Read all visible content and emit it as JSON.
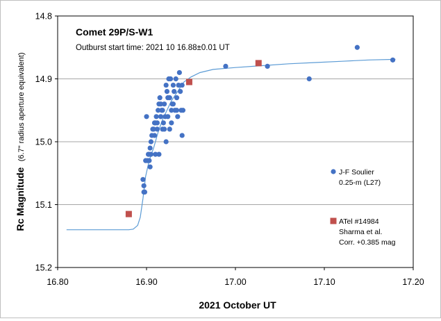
{
  "chart_data": {
    "type": "scatter",
    "title": "Comet 29P/S-W1",
    "subtitle": "Outburst start time: 2021 10 16.88±0.01  UT",
    "xlabel": "2021 October  UT",
    "ylabel_main": "Rc Magnitude",
    "ylabel_sub": "(6.7\" radius aperture equivalent)",
    "xlim": [
      16.8,
      17.2
    ],
    "ylim": [
      15.2,
      14.8
    ],
    "y_inverted": true,
    "grid": "horizontal",
    "x_ticks": [
      "16.80",
      "16.90",
      "17.00",
      "17.10",
      "17.20"
    ],
    "x_tick_values": [
      16.8,
      16.9,
      17.0,
      17.1,
      17.2
    ],
    "y_ticks": [
      "14.8",
      "14.9",
      "15.0",
      "15.1",
      "15.2"
    ],
    "y_tick_values": [
      14.8,
      14.9,
      15.0,
      15.1,
      15.2
    ],
    "legend_position": "right",
    "colors": {
      "soulier": "#4472c4",
      "atel": "#c0504d",
      "fit": "#5b9bd5",
      "grid": "#a6a6a6"
    },
    "series": [
      {
        "name": "J-F Soulier",
        "legend_lines": [
          "J-F Soulier",
          "0.25-m (L27)"
        ],
        "marker": "circle",
        "color": "#4472c4",
        "points": [
          [
            16.896,
            15.06
          ],
          [
            16.897,
            15.07
          ],
          [
            16.898,
            15.08
          ],
          [
            16.897,
            15.08
          ],
          [
            16.899,
            15.03
          ],
          [
            16.901,
            15.03
          ],
          [
            16.903,
            15.03
          ],
          [
            16.902,
            15.02
          ],
          [
            16.904,
            15.01
          ],
          [
            16.905,
            15.0
          ],
          [
            16.904,
            15.04
          ],
          [
            16.906,
            14.99
          ],
          [
            16.907,
            14.98
          ],
          [
            16.908,
            14.98
          ],
          [
            16.909,
            14.97
          ],
          [
            16.91,
            14.97
          ],
          [
            16.911,
            14.96
          ],
          [
            16.912,
            14.97
          ],
          [
            16.913,
            14.95
          ],
          [
            16.914,
            14.94
          ],
          [
            16.915,
            14.93
          ],
          [
            16.916,
            14.96
          ],
          [
            16.917,
            14.95
          ],
          [
            16.918,
            14.95
          ],
          [
            16.919,
            14.97
          ],
          [
            16.92,
            14.94
          ],
          [
            16.921,
            14.96
          ],
          [
            16.922,
            14.91
          ],
          [
            16.923,
            14.92
          ],
          [
            16.924,
            14.93
          ],
          [
            16.925,
            14.9
          ],
          [
            16.926,
            14.93
          ],
          [
            16.927,
            14.9
          ],
          [
            16.928,
            14.95
          ],
          [
            16.929,
            14.94
          ],
          [
            16.93,
            14.91
          ],
          [
            16.931,
            14.92
          ],
          [
            16.932,
            14.95
          ],
          [
            16.933,
            14.9
          ],
          [
            16.934,
            14.95
          ],
          [
            16.935,
            14.96
          ],
          [
            16.936,
            14.91
          ],
          [
            16.937,
            14.89
          ],
          [
            16.938,
            14.92
          ],
          [
            16.939,
            14.95
          ],
          [
            16.94,
            14.91
          ],
          [
            16.94,
            14.99
          ],
          [
            16.941,
            14.95
          ],
          [
            16.9,
            14.96
          ],
          [
            16.903,
            15.02
          ],
          [
            16.909,
            14.99
          ],
          [
            16.918,
            14.98
          ],
          [
            16.922,
            15.0
          ],
          [
            16.926,
            14.98
          ],
          [
            16.928,
            14.97
          ],
          [
            16.914,
            15.02
          ],
          [
            16.91,
            15.02
          ],
          [
            16.905,
            15.02
          ],
          [
            16.912,
            14.98
          ],
          [
            16.916,
            14.94
          ],
          [
            16.924,
            14.96
          ],
          [
            16.92,
            14.98
          ],
          [
            16.934,
            14.93
          ],
          [
            16.93,
            14.94
          ],
          [
            16.989,
            14.88
          ],
          [
            17.036,
            14.88
          ],
          [
            17.083,
            14.9
          ],
          [
            17.137,
            14.85
          ],
          [
            17.177,
            14.87
          ]
        ]
      },
      {
        "name": "ATel #14984",
        "legend_lines": [
          "ATel #14984",
          "Sharma et al.",
          "Corr. +0.385 mag"
        ],
        "marker": "square",
        "color": "#c0504d",
        "points": [
          [
            16.88,
            15.115
          ],
          [
            16.948,
            14.905
          ],
          [
            17.026,
            14.875
          ]
        ]
      }
    ],
    "fit_curve": {
      "color": "#5b9bd5",
      "points": [
        [
          16.81,
          15.14
        ],
        [
          16.88,
          15.14
        ],
        [
          16.885,
          15.139
        ],
        [
          16.89,
          15.133
        ],
        [
          16.893,
          15.12
        ],
        [
          16.896,
          15.09
        ],
        [
          16.899,
          15.055
        ],
        [
          16.903,
          15.03
        ],
        [
          16.908,
          15.01
        ],
        [
          16.913,
          14.985
        ],
        [
          16.918,
          14.965
        ],
        [
          16.923,
          14.95
        ],
        [
          16.928,
          14.935
        ],
        [
          16.935,
          14.92
        ],
        [
          16.942,
          14.905
        ],
        [
          16.95,
          14.897
        ],
        [
          16.96,
          14.89
        ],
        [
          16.975,
          14.885
        ],
        [
          17.0,
          14.882
        ],
        [
          17.03,
          14.879
        ],
        [
          17.06,
          14.876
        ],
        [
          17.09,
          14.874
        ],
        [
          17.12,
          14.872
        ],
        [
          17.15,
          14.87
        ],
        [
          17.18,
          14.869
        ]
      ]
    }
  }
}
